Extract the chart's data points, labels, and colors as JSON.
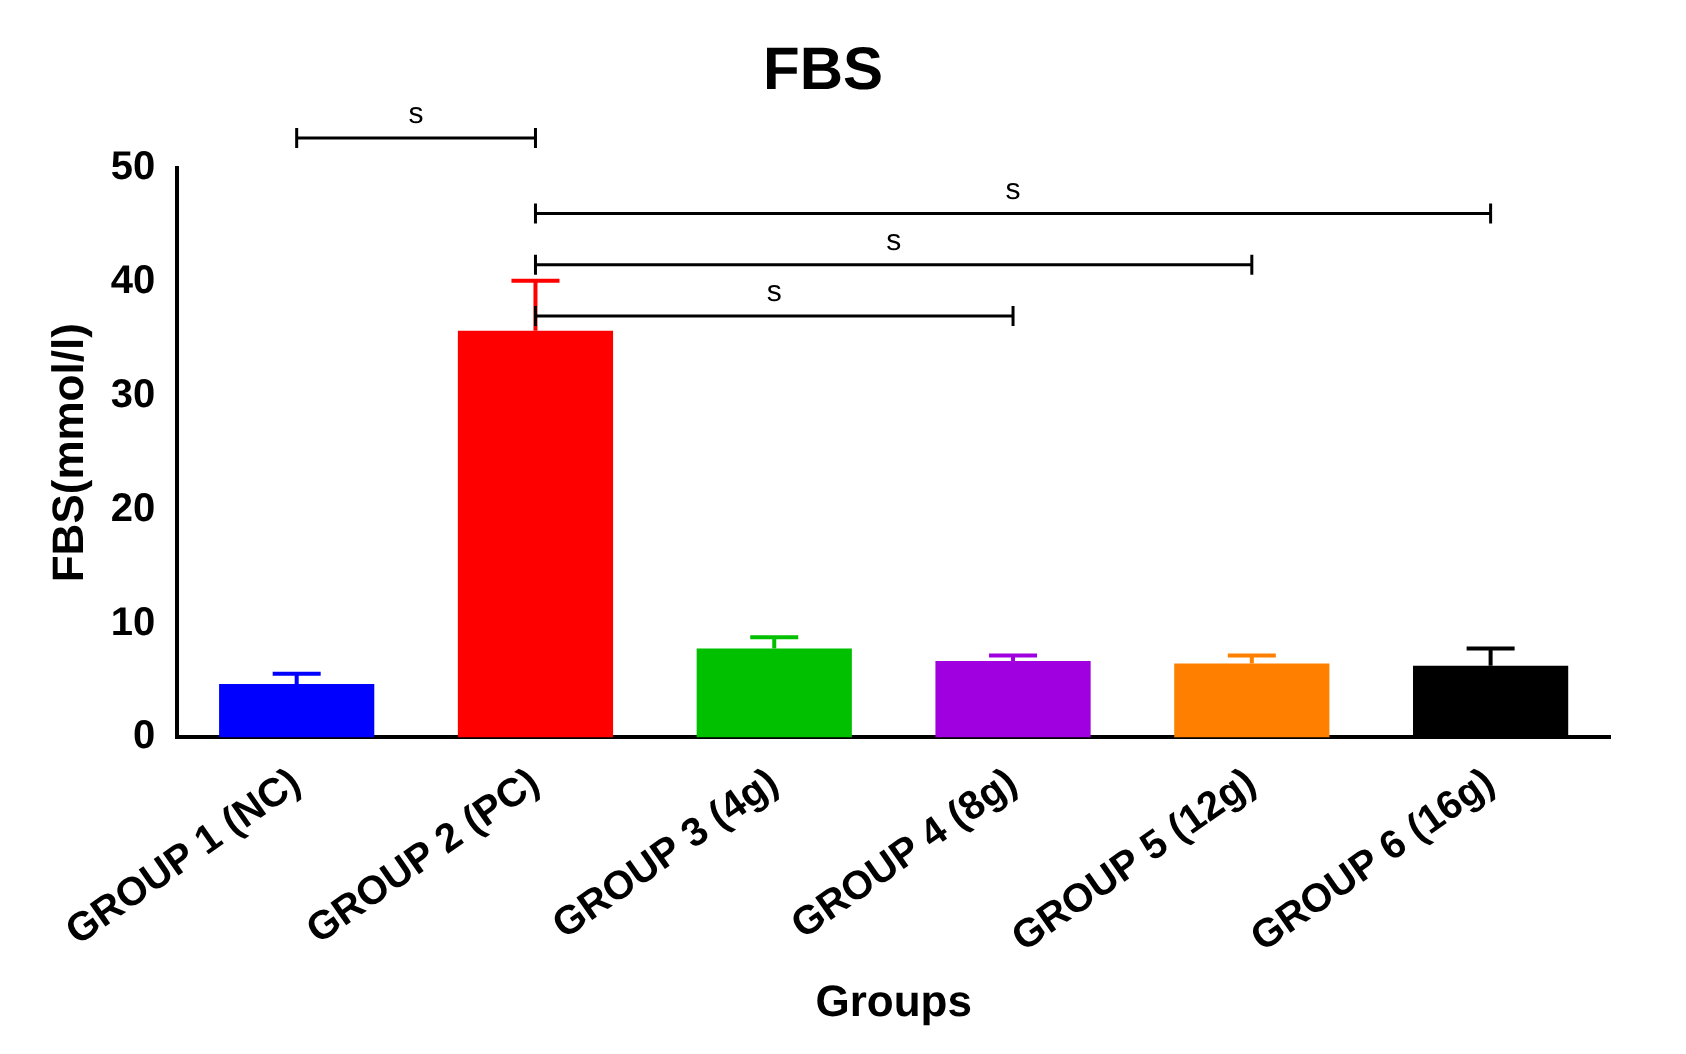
{
  "chart_data": {
    "type": "bar",
    "title": "FBS",
    "xlabel": "Groups",
    "ylabel": "FBS(mmol/l)",
    "categories": [
      "GROUP 1 (NC)",
      "GROUP 2 (PC)",
      "GROUP 3 (4g)",
      "GROUP 4 (8g)",
      "GROUP 5 (12g)",
      "GROUP 6 (16g)"
    ],
    "values": [
      4.7,
      35.7,
      7.8,
      6.7,
      6.5,
      6.3
    ],
    "colors": [
      "#0000ff",
      "#ff0000",
      "#00c000",
      "#a000e0",
      "#ff8000",
      "#000000"
    ],
    "errors": [
      [
        4.7,
        5.6
      ],
      [
        35.7,
        40.1
      ],
      [
        7.8,
        8.8
      ],
      [
        6.7,
        7.2
      ],
      [
        6.5,
        7.2
      ],
      [
        6.3,
        7.8
      ]
    ],
    "ylim": [
      0,
      50
    ],
    "yticks": [
      0,
      10,
      20,
      30,
      40,
      50
    ],
    "grid": false,
    "legend": false,
    "annotations": [
      "s",
      "s",
      "s",
      "s"
    ]
  }
}
